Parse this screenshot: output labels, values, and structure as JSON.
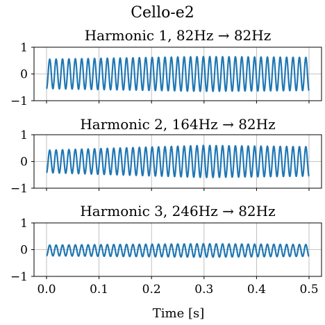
{
  "figure": {
    "title": "Cello-e2",
    "xlabel": "Time [s]"
  },
  "chart_data": [
    {
      "type": "line",
      "title": "Harmonic 1, 82Hz → 82Hz",
      "xlim": [
        0.0,
        0.5
      ],
      "ylim": [
        -1,
        1
      ],
      "xticks": [
        0.0,
        0.1,
        0.2,
        0.3,
        0.4,
        0.5
      ],
      "xtick_labels": [
        "0.0",
        "0.1",
        "0.2",
        "0.3",
        "0.4",
        "0.5"
      ],
      "yticks": [
        -1,
        0,
        1
      ],
      "ytick_labels": [
        "−1",
        "0",
        "1"
      ],
      "grid": true,
      "color": "#1f77b4",
      "signal": {
        "frequency_hz": 82,
        "offset": 0.0,
        "amplitude_start": 0.55,
        "amplitude_peak": 0.65,
        "amplitude_end": 0.62,
        "x_start": 0.0,
        "x_end": 0.5
      }
    },
    {
      "type": "line",
      "title": "Harmonic 2, 164Hz → 82Hz",
      "xlim": [
        0.0,
        0.5
      ],
      "ylim": [
        -1,
        1
      ],
      "xticks": [
        0.0,
        0.1,
        0.2,
        0.3,
        0.4,
        0.5
      ],
      "xtick_labels": [
        "0.0",
        "0.1",
        "0.2",
        "0.3",
        "0.4",
        "0.5"
      ],
      "yticks": [
        -1,
        0,
        1
      ],
      "ytick_labels": [
        "−1",
        "0",
        "1"
      ],
      "grid": true,
      "color": "#1f77b4",
      "signal": {
        "frequency_hz": 82,
        "offset": 0.0,
        "amplitude_start": 0.42,
        "amplitude_peak": 0.6,
        "amplitude_end": 0.55,
        "x_start": 0.0,
        "x_end": 0.5
      }
    },
    {
      "type": "line",
      "title": "Harmonic 3, 246Hz → 82Hz",
      "xlim": [
        0.0,
        0.5
      ],
      "ylim": [
        -1,
        1
      ],
      "xticks": [
        0.0,
        0.1,
        0.2,
        0.3,
        0.4,
        0.5
      ],
      "xtick_labels": [
        "0.0",
        "0.1",
        "0.2",
        "0.3",
        "0.4",
        "0.5"
      ],
      "yticks": [
        -1,
        0,
        1
      ],
      "ytick_labels": [
        "−1",
        "0",
        "1"
      ],
      "grid": true,
      "color": "#1f77b4",
      "signal": {
        "frequency_hz": 82,
        "offset": -0.03,
        "amplitude_start": 0.2,
        "amplitude_peak": 0.25,
        "amplitude_end": 0.22,
        "x_start": 0.0,
        "x_end": 0.5
      }
    }
  ]
}
